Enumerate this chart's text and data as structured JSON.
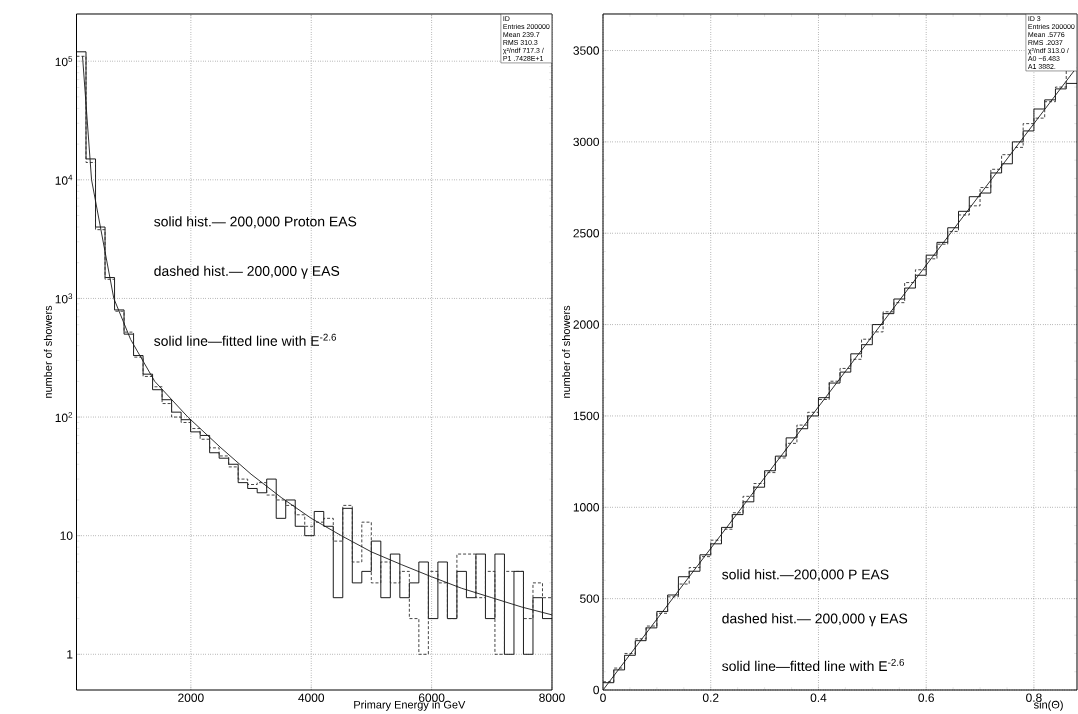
{
  "chart_data": [
    {
      "type": "histogram",
      "xlabel": "Primary Energy in GeV",
      "ylabel": "number of showers",
      "log": "y",
      "grid": true,
      "xlim": [
        100,
        8000
      ],
      "ylim": [
        0.5,
        250000
      ],
      "xticks": [
        2000,
        4000,
        6000,
        8000
      ],
      "yticks": [
        1,
        10,
        {
          "value": 100,
          "label": "10$^{2}$"
        },
        {
          "value": 1000,
          "label": "10$^{3}$"
        },
        {
          "value": 10000,
          "label": "10$^{4}$"
        },
        {
          "value": 100000,
          "label": "10$^{5}$"
        }
      ],
      "bins": [
        100,
        258,
        416,
        574,
        732,
        890,
        1048,
        1206,
        1364,
        1522,
        1680,
        1838,
        1996,
        2154,
        2312,
        2470,
        2628,
        2786,
        2944,
        3102,
        3260,
        3418,
        3576,
        3734,
        3892,
        4050,
        4208,
        4366,
        4524,
        4682,
        4840,
        4998,
        5156,
        5314,
        5472,
        5630,
        5788,
        5946,
        6104,
        6262,
        6420,
        6578,
        6736,
        6894,
        7052,
        7210,
        7368,
        7526,
        7684,
        7842,
        8000
      ],
      "series": [
        {
          "color": "#000000",
          "line_style": "solid",
          "values": [
            120000,
            15000,
            4000,
            1500,
            800,
            500,
            330,
            230,
            170,
            140,
            110,
            95,
            75,
            70,
            50,
            45,
            40,
            28,
            25,
            23,
            30,
            14,
            20,
            12,
            10,
            16,
            12,
            3,
            17,
            4,
            5,
            9,
            3,
            7,
            3,
            4,
            6,
            2,
            6,
            2,
            5,
            3,
            7,
            2,
            7,
            1,
            5,
            1,
            3,
            2
          ]
        },
        {
          "color": "#303030",
          "line_style": "dashed",
          "values": [
            110000,
            14000,
            3800,
            1450,
            780,
            520,
            320,
            220,
            180,
            130,
            100,
            90,
            80,
            65,
            55,
            47,
            38,
            30,
            27,
            28,
            22,
            20,
            18,
            15,
            12,
            13,
            14,
            9,
            18,
            6,
            13,
            4,
            6,
            4,
            5,
            2,
            1,
            5,
            4,
            2,
            7,
            7,
            3,
            5,
            1,
            5,
            5,
            2,
            4,
            3
          ]
        },
        {
          "type": "line",
          "color": "#181818",
          "line_style": "solid",
          "x": [
            200,
            350,
            720,
            1000,
            1400,
            1950,
            2500,
            3000,
            3500,
            4000,
            4500,
            5000,
            5500,
            6000,
            6500,
            7000,
            7500,
            8000
          ],
          "values": [
            110000,
            10000,
            1000,
            450,
            200,
            100,
            55,
            33,
            21,
            14,
            10,
            7.3,
            5.7,
            4.5,
            3.6,
            3.0,
            2.5,
            2.15
          ]
        }
      ],
      "annotations": [
        "solid hist.— 200,000 Proton EAS",
        "dashed hist.— 200,000 γ EAS",
        "solid line—fitted line with E$^{-2.6}$",
        "ID",
        "Entries 200000",
        "Mean 239.7",
        "RMS 310.3",
        "χ²/ndf 717.3 /",
        "P1 .7428E+1"
      ]
    },
    {
      "type": "histogram",
      "xlabel": "sin(Θ)",
      "ylabel": "number of showers",
      "grid": true,
      "xlim": [
        0,
        0.88
      ],
      "ylim": [
        0,
        3700
      ],
      "xticks": [
        0,
        0.2,
        0.4,
        0.6,
        0.8
      ],
      "yticks": [
        0,
        500,
        1000,
        1500,
        2000,
        2500,
        3000,
        3500
      ],
      "bins": [
        0,
        0.02,
        0.04,
        0.06,
        0.08,
        0.1,
        0.12,
        0.14,
        0.16,
        0.18,
        0.2,
        0.22,
        0.24,
        0.26,
        0.28,
        0.3,
        0.32,
        0.34,
        0.36,
        0.38,
        0.4,
        0.42,
        0.44,
        0.46,
        0.48,
        0.5,
        0.52,
        0.54,
        0.56,
        0.58,
        0.6,
        0.62,
        0.64,
        0.66,
        0.68,
        0.7,
        0.72,
        0.74,
        0.76,
        0.78,
        0.8,
        0.82,
        0.84,
        0.86,
        0.88
      ],
      "series": [
        {
          "color": "#000000",
          "line_style": "solid",
          "values": [
            40,
            110,
            190,
            270,
            340,
            430,
            520,
            620,
            650,
            740,
            800,
            890,
            960,
            1030,
            1110,
            1200,
            1280,
            1380,
            1430,
            1500,
            1600,
            1680,
            1740,
            1840,
            1890,
            2000,
            2060,
            2140,
            2200,
            2270,
            2380,
            2450,
            2530,
            2620,
            2700,
            2720,
            2830,
            2880,
            3000,
            3060,
            3180,
            3230,
            3290,
            3320
          ]
        },
        {
          "color": "#303030",
          "line_style": "dashed",
          "values": [
            45,
            120,
            200,
            280,
            350,
            420,
            510,
            580,
            670,
            730,
            820,
            880,
            970,
            1060,
            1130,
            1190,
            1270,
            1350,
            1450,
            1520,
            1590,
            1690,
            1760,
            1810,
            1920,
            1960,
            2070,
            2120,
            2230,
            2300,
            2360,
            2440,
            2510,
            2600,
            2650,
            2750,
            2850,
            2930,
            2970,
            3100,
            3130,
            3220,
            3300,
            3390
          ]
        },
        {
          "type": "line",
          "color": "#181818",
          "line_style": "solid",
          "x": [
            0,
            0.88
          ],
          "values": [
            0,
            3410
          ]
        }
      ],
      "annotations": [
        "solid hist.—200,000 P EAS",
        "dashed hist.— 200,000 γ EAS",
        "solid line—fitted line with E$^{-2.6}$",
        "ID 3",
        "Entries 200000",
        "Mean .5776",
        "RMS .2037",
        "χ²/ndf 313.0 /",
        "A0 −6.483",
        "A1 3882."
      ]
    }
  ]
}
